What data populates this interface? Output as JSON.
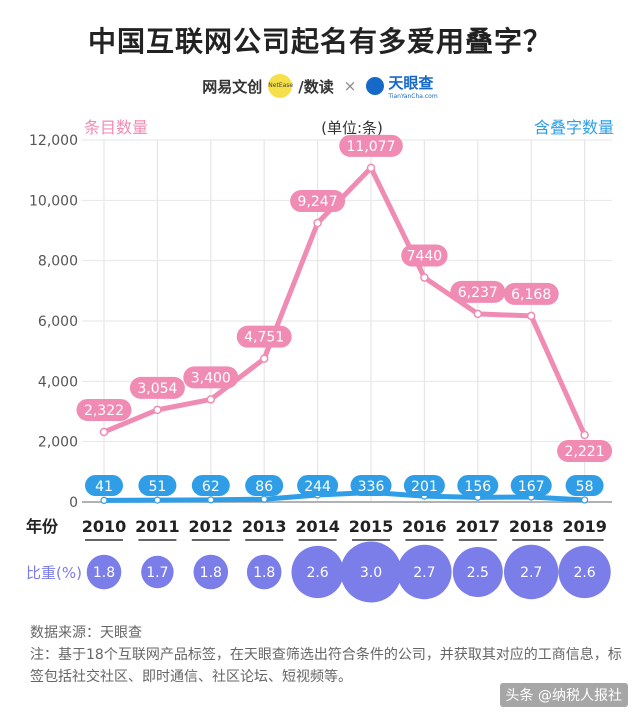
{
  "title": "中国互联网公司起名有多爱用叠字？",
  "logos": {
    "netease": "网易文创",
    "netease_badge": "NetEase",
    "shudu": "/数读",
    "times": "×",
    "tianyancha": "天眼查",
    "tianyancha_sub": "TianYanCha.com"
  },
  "colors": {
    "pink": "#f08cb4",
    "blue": "#2f9ee6",
    "circle": "#7b7de8",
    "grid": "#e6e6e6"
  },
  "chart_data": {
    "type": "line",
    "unit_label": "(单位:条)",
    "left_series_label": "条目数量",
    "right_series_label": "含叠字数量",
    "x_label": "年份",
    "ratio_label": "比重(%)",
    "categories": [
      "2010",
      "2011",
      "2012",
      "2013",
      "2014",
      "2015",
      "2016",
      "2017",
      "2018",
      "2019"
    ],
    "y_ticks": [
      "0",
      "2,000",
      "4,000",
      "6,000",
      "8,000",
      "10,000",
      "12,000"
    ],
    "ylim": [
      0,
      12000
    ],
    "grid": true,
    "series": [
      {
        "name": "条目数量",
        "values": [
          2322,
          3054,
          3400,
          4751,
          9247,
          11077,
          7440,
          6237,
          6168,
          2221
        ],
        "labels": [
          "2,322",
          "3,054",
          "3,400",
          "4,751",
          "9,247",
          "11,077",
          "7440",
          "6,237",
          "6,168",
          "2,221"
        ]
      },
      {
        "name": "含叠字数量",
        "values": [
          41,
          51,
          62,
          86,
          244,
          336,
          201,
          156,
          167,
          58
        ],
        "labels": [
          "41",
          "51",
          "62",
          "86",
          "244",
          "336",
          "201",
          "156",
          "167",
          "58"
        ]
      }
    ],
    "ratio": [
      1.8,
      1.7,
      1.8,
      1.8,
      2.6,
      3.0,
      2.7,
      2.5,
      2.7,
      2.6
    ],
    "ratio_labels": [
      "1.8",
      "1.7",
      "1.8",
      "1.8",
      "2.6",
      "3.0",
      "2.7",
      "2.5",
      "2.7",
      "2.6"
    ]
  },
  "footer": {
    "source": "数据来源：天眼查",
    "note": "注：基于18个互联网产品标签，在天眼查筛选出符合条件的公司，并获取其对应的工商信息，标签包括社交社区、即时通信、社区论坛、短视频等。"
  },
  "watermark": "头条 @纳税人报社"
}
